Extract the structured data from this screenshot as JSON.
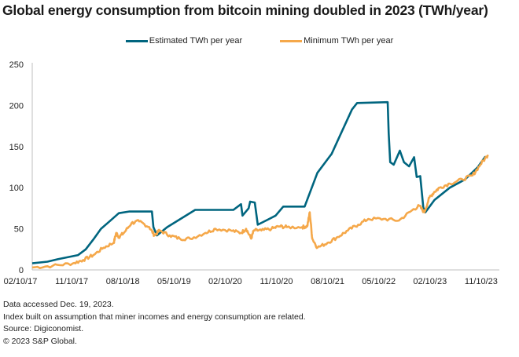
{
  "title": "Global energy consumption from bitcoin mining doubled in 2023 (TWh/year)",
  "colors": {
    "estimated": "#00657f",
    "minimum": "#f5a84a",
    "axis": "#bfbfbf"
  },
  "chart_data": {
    "type": "line",
    "title": "Global energy consumption from bitcoin mining doubled in 2023 (TWh/year)",
    "xlabel": "",
    "ylabel": "",
    "ylim": [
      0,
      250
    ],
    "yticks": [
      0,
      50,
      100,
      150,
      200,
      250
    ],
    "xticks": [
      "02/10/17",
      "11/10/17",
      "08/10/18",
      "05/10/19",
      "02/10/20",
      "11/10/20",
      "08/10/21",
      "05/10/22",
      "02/10/23",
      "11/10/23"
    ],
    "xrange": [
      0,
      9.05
    ],
    "grid": false,
    "legend": "top-center",
    "series": [
      {
        "name": "Estimated TWh per year",
        "x": [
          0,
          0.3,
          0.5,
          0.9,
          1.05,
          1.2,
          1.35,
          1.5,
          1.7,
          1.9,
          2.35,
          2.38,
          2.45,
          2.65,
          3.2,
          3.95,
          4.1,
          4.13,
          4.25,
          4.28,
          4.37,
          4.43,
          4.62,
          4.78,
          4.93,
          5.35,
          5.6,
          5.83,
          5.88,
          6.05,
          6.28,
          6.38,
          6.98,
          7.0,
          7.03,
          7.1,
          7.22,
          7.3,
          7.4,
          7.5,
          7.55,
          7.62,
          7.68,
          7.72,
          7.9,
          8.2,
          8.5,
          8.75,
          8.9
        ],
        "values": [
          8,
          10,
          13,
          18,
          25,
          37,
          50,
          58,
          69,
          71,
          71,
          52,
          42,
          52,
          73,
          73,
          80,
          66,
          75,
          83,
          82,
          55,
          61,
          66,
          77,
          77,
          118,
          137,
          141,
          164,
          195,
          203,
          204,
          166,
          131,
          128,
          145,
          131,
          126,
          137,
          113,
          114,
          76,
          70,
          85,
          100,
          110,
          125,
          138
        ]
      },
      {
        "name": "Minimum TWh per year",
        "x": [
          0,
          0.4,
          0.8,
          1.0,
          1.2,
          1.4,
          1.6,
          1.65,
          1.7,
          1.8,
          1.95,
          2.1,
          2.3,
          2.4,
          2.5,
          2.7,
          2.9,
          3.1,
          3.4,
          3.6,
          3.9,
          4.1,
          4.2,
          4.3,
          4.35,
          4.5,
          4.7,
          4.85,
          5.0,
          5.3,
          5.4,
          5.45,
          5.5,
          5.6,
          5.8,
          6.0,
          6.2,
          6.4,
          6.6,
          6.9,
          7.2,
          7.45,
          7.6,
          7.7,
          7.8,
          7.9,
          8.0,
          8.2,
          8.45,
          8.65,
          8.8,
          8.95
        ],
        "values": [
          3,
          5,
          8,
          12,
          18,
          27,
          33,
          45,
          40,
          45,
          57,
          59,
          52,
          42,
          48,
          42,
          38,
          38,
          45,
          50,
          48,
          45,
          50,
          38,
          48,
          48,
          50,
          53,
          52,
          52,
          53,
          70,
          38,
          27,
          33,
          40,
          48,
          55,
          62,
          62,
          60,
          72,
          78,
          70,
          88,
          95,
          100,
          105,
          110,
          115,
          128,
          140
        ]
      }
    ]
  },
  "legend": [
    {
      "label": "Estimated TWh per year",
      "key": "estimated"
    },
    {
      "label": "Minimum TWh per year",
      "key": "minimum"
    }
  ],
  "footer": [
    "Data accessed Dec. 19, 2023.",
    "Index built on assumption that miner incomes and energy consumption are related.",
    "Source: Digiconomist.",
    "© 2023 S&P Global."
  ]
}
